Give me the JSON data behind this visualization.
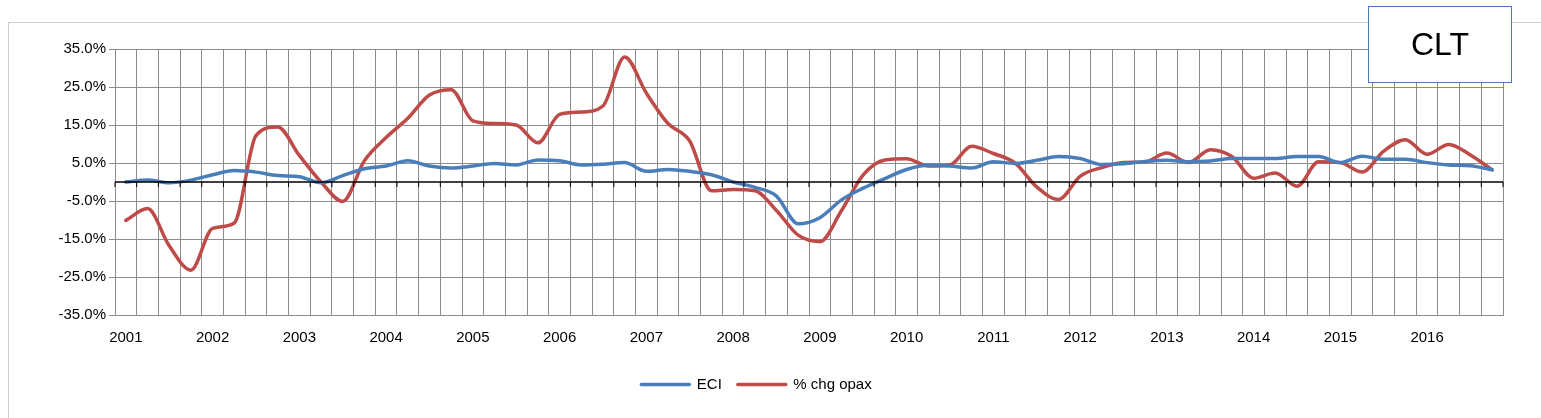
{
  "chart_data": {
    "type": "line",
    "title": "CLT",
    "categories": [
      "2001",
      null,
      null,
      null,
      "2002",
      null,
      null,
      null,
      "2003",
      null,
      null,
      null,
      "2004",
      null,
      null,
      null,
      "2005",
      null,
      null,
      null,
      "2006",
      null,
      null,
      null,
      "2007",
      null,
      null,
      null,
      "2008",
      null,
      null,
      null,
      "2009",
      null,
      null,
      null,
      "2010",
      null,
      null,
      null,
      "2011",
      null,
      null,
      null,
      "2012",
      null,
      null,
      null,
      "2013",
      null,
      null,
      null,
      "2014",
      null,
      null,
      null,
      "2015",
      null,
      null,
      null,
      "2016",
      null,
      null,
      null
    ],
    "series": [
      {
        "name": "ECI",
        "color": "#4a7ebb",
        "values": [
          0,
          0.5,
          -0.2,
          0.5,
          1.9,
          3.0,
          2.6,
          1.7,
          1.4,
          -0.2,
          1.7,
          3.5,
          4.2,
          5.6,
          4.2,
          3.7,
          4.2,
          4.9,
          4.5,
          5.8,
          5.6,
          4.5,
          4.7,
          5.1,
          2.8,
          3.3,
          2.8,
          1.9,
          0,
          -1.4,
          -3.7,
          -11.0,
          -9.4,
          -4.7,
          -1.6,
          0.9,
          3.3,
          4.4,
          4.2,
          3.7,
          5.3,
          4.9,
          5.7,
          6.7,
          6.2,
          4.6,
          4.8,
          5.4,
          5.7,
          5.3,
          5.5,
          6.2,
          6.2,
          6.2,
          6.7,
          6.7,
          5.1,
          6.8,
          6.0,
          6.0,
          5.1,
          4.5,
          4.3,
          3.2
        ]
      },
      {
        "name": "% chg opax",
        "color": "#be4b48",
        "values": [
          -10.1,
          -7.0,
          -16.8,
          -23.2,
          -12.2,
          -10.8,
          12.2,
          14.5,
          7.0,
          0,
          -5.1,
          5.6,
          11.7,
          16.8,
          22.9,
          24.3,
          16.1,
          15.4,
          15.0,
          10.3,
          17.8,
          18.4,
          20.0,
          32.9,
          23.4,
          15.4,
          10.8,
          -2.3,
          -2.0,
          -2.3,
          -7.5,
          -14.0,
          -15.7,
          -7.5,
          1.9,
          5.8,
          6.1,
          4.2,
          4.5,
          9.4,
          7.5,
          5.0,
          -1.3,
          -4.6,
          1.5,
          3.8,
          5.1,
          5.3,
          7.6,
          5.1,
          8.5,
          6.7,
          1.0,
          2.4,
          -1.1,
          5.3,
          5.1,
          2.6,
          8.1,
          11.1,
          7.3,
          9.9,
          7.1,
          3.2
        ]
      }
    ],
    "ylim": [
      -35,
      35
    ],
    "yticks": [
      {
        "value": -35,
        "label": "-35.0%"
      },
      {
        "value": -25,
        "label": "-25.0%"
      },
      {
        "value": -15,
        "label": "-15.0%"
      },
      {
        "value": -5,
        "label": "-5.0%"
      },
      {
        "value": 5,
        "label": "5.0%"
      },
      {
        "value": 15,
        "label": "15.0%"
      },
      {
        "value": 25,
        "label": "25.0%"
      },
      {
        "value": 35,
        "label": "35.0%"
      }
    ],
    "grid": true,
    "legend": "bottom",
    "marker": "none",
    "line_style": "solid"
  }
}
